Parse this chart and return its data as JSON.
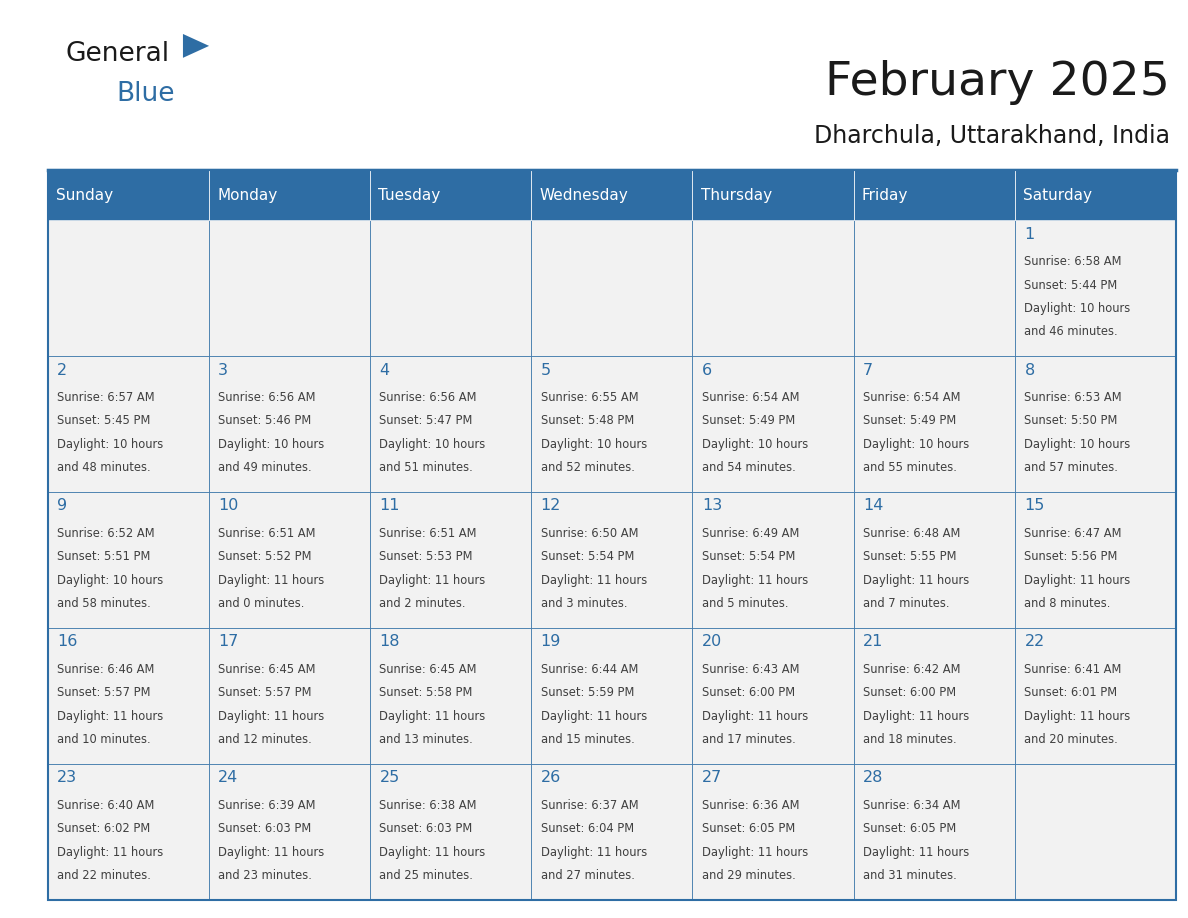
{
  "title": "February 2025",
  "subtitle": "Dharchula, Uttarakhand, India",
  "days_of_week": [
    "Sunday",
    "Monday",
    "Tuesday",
    "Wednesday",
    "Thursday",
    "Friday",
    "Saturday"
  ],
  "header_bg": "#2E6DA4",
  "header_text": "#FFFFFF",
  "cell_bg_light": "#F2F2F2",
  "border_color": "#2E6DA4",
  "day_num_color": "#2E6DA4",
  "text_color": "#404040",
  "calendar_data": [
    [
      {
        "day": null,
        "info": ""
      },
      {
        "day": null,
        "info": ""
      },
      {
        "day": null,
        "info": ""
      },
      {
        "day": null,
        "info": ""
      },
      {
        "day": null,
        "info": ""
      },
      {
        "day": null,
        "info": ""
      },
      {
        "day": 1,
        "info": "Sunrise: 6:58 AM\nSunset: 5:44 PM\nDaylight: 10 hours\nand 46 minutes."
      }
    ],
    [
      {
        "day": 2,
        "info": "Sunrise: 6:57 AM\nSunset: 5:45 PM\nDaylight: 10 hours\nand 48 minutes."
      },
      {
        "day": 3,
        "info": "Sunrise: 6:56 AM\nSunset: 5:46 PM\nDaylight: 10 hours\nand 49 minutes."
      },
      {
        "day": 4,
        "info": "Sunrise: 6:56 AM\nSunset: 5:47 PM\nDaylight: 10 hours\nand 51 minutes."
      },
      {
        "day": 5,
        "info": "Sunrise: 6:55 AM\nSunset: 5:48 PM\nDaylight: 10 hours\nand 52 minutes."
      },
      {
        "day": 6,
        "info": "Sunrise: 6:54 AM\nSunset: 5:49 PM\nDaylight: 10 hours\nand 54 minutes."
      },
      {
        "day": 7,
        "info": "Sunrise: 6:54 AM\nSunset: 5:49 PM\nDaylight: 10 hours\nand 55 minutes."
      },
      {
        "day": 8,
        "info": "Sunrise: 6:53 AM\nSunset: 5:50 PM\nDaylight: 10 hours\nand 57 minutes."
      }
    ],
    [
      {
        "day": 9,
        "info": "Sunrise: 6:52 AM\nSunset: 5:51 PM\nDaylight: 10 hours\nand 58 minutes."
      },
      {
        "day": 10,
        "info": "Sunrise: 6:51 AM\nSunset: 5:52 PM\nDaylight: 11 hours\nand 0 minutes."
      },
      {
        "day": 11,
        "info": "Sunrise: 6:51 AM\nSunset: 5:53 PM\nDaylight: 11 hours\nand 2 minutes."
      },
      {
        "day": 12,
        "info": "Sunrise: 6:50 AM\nSunset: 5:54 PM\nDaylight: 11 hours\nand 3 minutes."
      },
      {
        "day": 13,
        "info": "Sunrise: 6:49 AM\nSunset: 5:54 PM\nDaylight: 11 hours\nand 5 minutes."
      },
      {
        "day": 14,
        "info": "Sunrise: 6:48 AM\nSunset: 5:55 PM\nDaylight: 11 hours\nand 7 minutes."
      },
      {
        "day": 15,
        "info": "Sunrise: 6:47 AM\nSunset: 5:56 PM\nDaylight: 11 hours\nand 8 minutes."
      }
    ],
    [
      {
        "day": 16,
        "info": "Sunrise: 6:46 AM\nSunset: 5:57 PM\nDaylight: 11 hours\nand 10 minutes."
      },
      {
        "day": 17,
        "info": "Sunrise: 6:45 AM\nSunset: 5:57 PM\nDaylight: 11 hours\nand 12 minutes."
      },
      {
        "day": 18,
        "info": "Sunrise: 6:45 AM\nSunset: 5:58 PM\nDaylight: 11 hours\nand 13 minutes."
      },
      {
        "day": 19,
        "info": "Sunrise: 6:44 AM\nSunset: 5:59 PM\nDaylight: 11 hours\nand 15 minutes."
      },
      {
        "day": 20,
        "info": "Sunrise: 6:43 AM\nSunset: 6:00 PM\nDaylight: 11 hours\nand 17 minutes."
      },
      {
        "day": 21,
        "info": "Sunrise: 6:42 AM\nSunset: 6:00 PM\nDaylight: 11 hours\nand 18 minutes."
      },
      {
        "day": 22,
        "info": "Sunrise: 6:41 AM\nSunset: 6:01 PM\nDaylight: 11 hours\nand 20 minutes."
      }
    ],
    [
      {
        "day": 23,
        "info": "Sunrise: 6:40 AM\nSunset: 6:02 PM\nDaylight: 11 hours\nand 22 minutes."
      },
      {
        "day": 24,
        "info": "Sunrise: 6:39 AM\nSunset: 6:03 PM\nDaylight: 11 hours\nand 23 minutes."
      },
      {
        "day": 25,
        "info": "Sunrise: 6:38 AM\nSunset: 6:03 PM\nDaylight: 11 hours\nand 25 minutes."
      },
      {
        "day": 26,
        "info": "Sunrise: 6:37 AM\nSunset: 6:04 PM\nDaylight: 11 hours\nand 27 minutes."
      },
      {
        "day": 27,
        "info": "Sunrise: 6:36 AM\nSunset: 6:05 PM\nDaylight: 11 hours\nand 29 minutes."
      },
      {
        "day": 28,
        "info": "Sunrise: 6:34 AM\nSunset: 6:05 PM\nDaylight: 11 hours\nand 31 minutes."
      },
      {
        "day": null,
        "info": ""
      }
    ]
  ]
}
